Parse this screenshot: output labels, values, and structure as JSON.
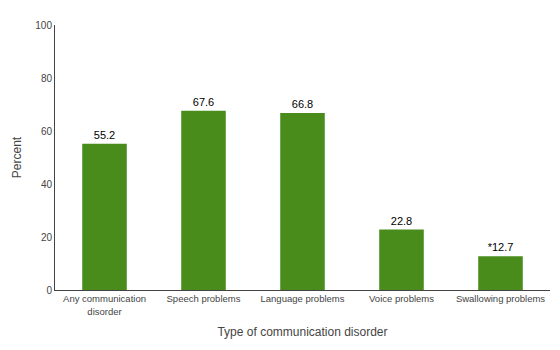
{
  "chart_data": {
    "type": "bar",
    "categories": [
      "Any communication\ndisorder",
      "Speech problems",
      "Language problems",
      "Voice problems",
      "Swallowing problems"
    ],
    "values": [
      55.2,
      67.6,
      66.8,
      22.8,
      12.7
    ],
    "value_labels": [
      "55.2",
      "67.6",
      "66.8",
      "22.8",
      "*12.7"
    ],
    "data_labels": true,
    "color": "#4a8c1c",
    "xlabel": "Type of communication disorder",
    "ylabel": "Percent",
    "ylim": [
      0,
      100
    ],
    "yticks": [
      0,
      20,
      40,
      60,
      80,
      100
    ],
    "grid": false
  }
}
